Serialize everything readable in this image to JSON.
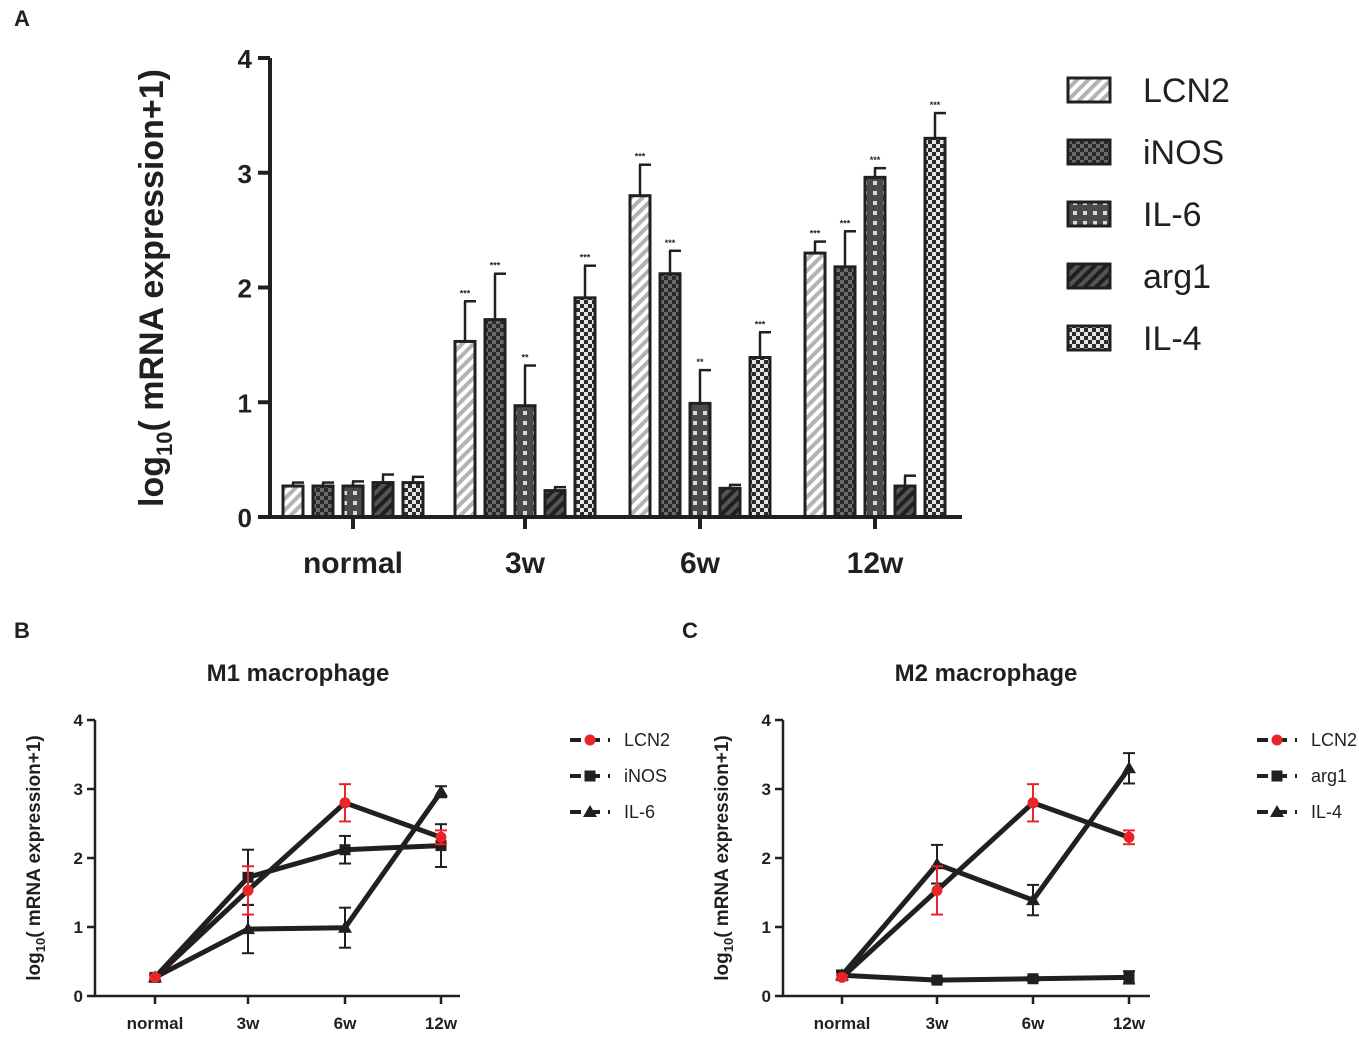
{
  "panels": {
    "a": {
      "letter": "A"
    },
    "b": {
      "letter": "B"
    },
    "c": {
      "letter": "C"
    }
  },
  "colors": {
    "ink": "#231f20",
    "lcn2_red": "#e8262a"
  },
  "chart_data": [
    {
      "id": "A",
      "type": "bar",
      "title": "",
      "ylabel_main": "log",
      "ylabel_sub": "10",
      "ylabel_rest": "( mRNA expression+1)",
      "ylim": [
        0,
        4
      ],
      "yticks": [
        "0",
        "1",
        "2",
        "3",
        "4"
      ],
      "categories": [
        "normal",
        "3w",
        "6w",
        "12w"
      ],
      "series": [
        {
          "name": "LCN2",
          "pattern": "stripe-light",
          "values": [
            0.27,
            1.53,
            2.8,
            2.3
          ],
          "errors": [
            0.03,
            0.35,
            0.27,
            0.1
          ],
          "sig": [
            "",
            "***",
            "***",
            "***"
          ]
        },
        {
          "name": "iNOS",
          "pattern": "check-dark",
          "values": [
            0.27,
            1.72,
            2.12,
            2.18
          ],
          "errors": [
            0.03,
            0.4,
            0.2,
            0.31
          ],
          "sig": [
            "",
            "***",
            "***",
            "***"
          ]
        },
        {
          "name": "IL-6",
          "pattern": "check-mid",
          "values": [
            0.27,
            0.97,
            0.99,
            2.96
          ],
          "errors": [
            0.04,
            0.35,
            0.29,
            0.08
          ],
          "sig": [
            "",
            "**",
            "**",
            "***"
          ]
        },
        {
          "name": "arg1",
          "pattern": "stripe-dark",
          "values": [
            0.3,
            0.23,
            0.25,
            0.27
          ],
          "errors": [
            0.07,
            0.03,
            0.03,
            0.09
          ],
          "sig": [
            "",
            "",
            "",
            ""
          ]
        },
        {
          "name": "IL-4",
          "pattern": "check-light",
          "values": [
            0.3,
            1.91,
            1.39,
            3.3
          ],
          "errors": [
            0.05,
            0.28,
            0.22,
            0.22
          ],
          "sig": [
            "",
            "***",
            "***",
            "***"
          ]
        }
      ],
      "legend": "right"
    },
    {
      "id": "B",
      "type": "line",
      "title": "M1 macrophage",
      "ylabel_main": "log",
      "ylabel_sub": "10",
      "ylabel_rest": "( mRNA expression+1)",
      "ylim": [
        0,
        4
      ],
      "yticks": [
        "0",
        "1",
        "2",
        "3",
        "4"
      ],
      "categories": [
        "normal",
        "3w",
        "6w",
        "12w"
      ],
      "series": [
        {
          "name": "LCN2",
          "marker": "circle",
          "color": "#e8262a",
          "values": [
            0.27,
            1.53,
            2.8,
            2.3
          ],
          "errors": [
            0.03,
            0.35,
            0.27,
            0.1
          ]
        },
        {
          "name": "iNOS",
          "marker": "square",
          "color": "#231f20",
          "values": [
            0.27,
            1.72,
            2.12,
            2.18
          ],
          "errors": [
            0.03,
            0.4,
            0.2,
            0.31
          ]
        },
        {
          "name": "IL-6",
          "marker": "triangle",
          "color": "#231f20",
          "values": [
            0.27,
            0.97,
            0.99,
            2.96
          ],
          "errors": [
            0.04,
            0.35,
            0.29,
            0.08
          ]
        }
      ],
      "legend": "right"
    },
    {
      "id": "C",
      "type": "line",
      "title": "M2 macrophage",
      "ylabel_main": "log",
      "ylabel_sub": "10",
      "ylabel_rest": "( mRNA expression+1)",
      "ylim": [
        0,
        4
      ],
      "yticks": [
        "0",
        "1",
        "2",
        "3",
        "4"
      ],
      "categories": [
        "normal",
        "3w",
        "6w",
        "12w"
      ],
      "series": [
        {
          "name": "LCN2",
          "marker": "circle",
          "color": "#e8262a",
          "values": [
            0.27,
            1.53,
            2.8,
            2.3
          ],
          "errors": [
            0.03,
            0.35,
            0.27,
            0.1
          ]
        },
        {
          "name": "arg1",
          "marker": "square",
          "color": "#231f20",
          "values": [
            0.3,
            0.23,
            0.25,
            0.27
          ],
          "errors": [
            0.07,
            0.03,
            0.03,
            0.09
          ]
        },
        {
          "name": "IL-4",
          "marker": "triangle",
          "color": "#231f20",
          "values": [
            0.3,
            1.91,
            1.39,
            3.3
          ],
          "errors": [
            0.05,
            0.28,
            0.22,
            0.22
          ]
        }
      ],
      "legend": "right"
    }
  ]
}
